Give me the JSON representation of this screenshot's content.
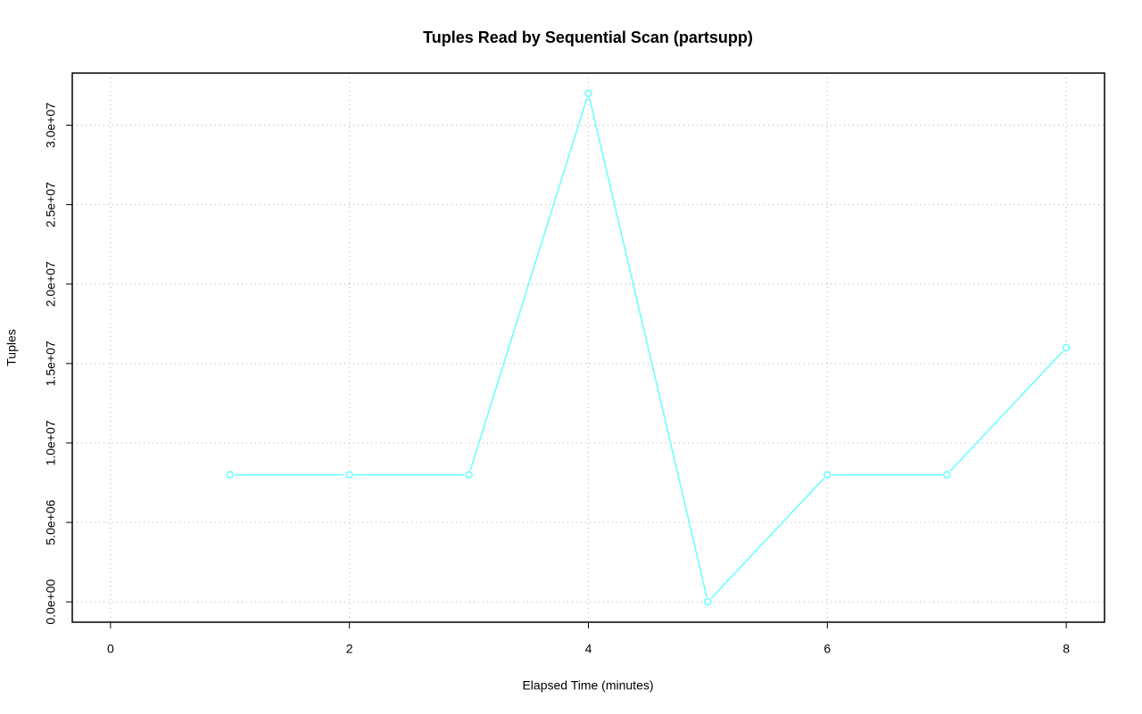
{
  "chart_data": {
    "type": "line",
    "title": "Tuples Read by Sequential Scan (partsupp)",
    "x_label": "Elapsed Time (minutes)",
    "y_label": "Tuples",
    "x": [
      1,
      2,
      3,
      4,
      5,
      6,
      7,
      8
    ],
    "series": [
      {
        "color": "#66ffff",
        "values": [
          8000000,
          8000000,
          8000000,
          32000000,
          0,
          8000000,
          8000000,
          16000000
        ]
      }
    ],
    "xlim": [
      -0.32,
      8.32
    ],
    "xticks": [
      0,
      2,
      4,
      6,
      8
    ],
    "ylim": [
      -1280000,
      33280000
    ],
    "yticks": [
      {
        "value": 0,
        "label": "0.0e+00"
      },
      {
        "value": 5000000,
        "label": "5.0e+06"
      },
      {
        "value": 10000000,
        "label": "1.0e+07"
      },
      {
        "value": 15000000,
        "label": "1.5e+07"
      },
      {
        "value": 20000000,
        "label": "2.0e+07"
      },
      {
        "value": 25000000,
        "label": "2.5e+07"
      },
      {
        "value": 30000000,
        "label": "3.0e+07"
      }
    ],
    "grid": true
  }
}
